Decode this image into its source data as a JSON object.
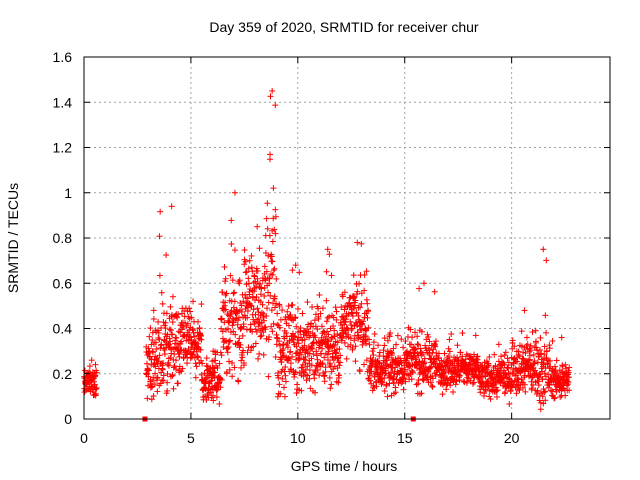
{
  "chart_data": {
    "type": "scatter",
    "title": "Day 359 of 2020, SRMTID for receiver chur",
    "xlabel": "GPS time / hours",
    "ylabel": "SRMTID / TECUs",
    "xlim": [
      0,
      24.6
    ],
    "ylim": [
      0,
      1.6
    ],
    "xticks": [
      0,
      5,
      10,
      15,
      20
    ],
    "yticks": [
      0,
      0.2,
      0.4,
      0.6,
      0.8,
      1,
      1.2,
      1.4,
      1.6
    ],
    "ytick_labels": [
      "0",
      "0.2",
      "0.4",
      "0.6",
      "0.8",
      "1",
      "1.2",
      "1.4",
      "1.6"
    ],
    "grid": true,
    "marker": "+",
    "color": "#ff0000",
    "zero_markers": {
      "x": [
        2.85,
        15.4
      ],
      "y": [
        0,
        0
      ]
    },
    "series": [
      {
        "name": "SRMTID",
        "segments": [
          {
            "start": 0.0,
            "end": 0.6,
            "base": 0.16,
            "spread": 0.06,
            "peak": 0.26
          },
          {
            "start": 2.9,
            "end": 3.5,
            "base": 0.25,
            "spread": 0.14,
            "peak": 0.48
          },
          {
            "start": 3.5,
            "end": 4.5,
            "base": 0.32,
            "spread": 0.15,
            "peak": 0.94
          },
          {
            "start": 4.5,
            "end": 5.5,
            "base": 0.35,
            "spread": 0.1,
            "peak": 0.52
          },
          {
            "start": 5.5,
            "end": 6.4,
            "base": 0.17,
            "spread": 0.07,
            "peak": 0.3
          },
          {
            "start": 6.4,
            "end": 7.5,
            "base": 0.4,
            "spread": 0.18,
            "peak": 1.0
          },
          {
            "start": 7.5,
            "end": 8.5,
            "base": 0.5,
            "spread": 0.2,
            "peak": 0.85
          },
          {
            "start": 8.5,
            "end": 9.0,
            "base": 0.6,
            "spread": 0.3,
            "peak": 1.45
          },
          {
            "start": 9.0,
            "end": 10.5,
            "base": 0.3,
            "spread": 0.15,
            "peak": 0.68
          },
          {
            "start": 10.5,
            "end": 12.0,
            "base": 0.32,
            "spread": 0.14,
            "peak": 0.75
          },
          {
            "start": 12.0,
            "end": 13.3,
            "base": 0.42,
            "spread": 0.15,
            "peak": 0.78
          },
          {
            "start": 13.3,
            "end": 15.0,
            "base": 0.22,
            "spread": 0.08,
            "peak": 0.38
          },
          {
            "start": 15.0,
            "end": 16.5,
            "base": 0.25,
            "spread": 0.1,
            "peak": 0.6
          },
          {
            "start": 16.5,
            "end": 18.5,
            "base": 0.22,
            "spread": 0.07,
            "peak": 0.38
          },
          {
            "start": 18.5,
            "end": 20.0,
            "base": 0.18,
            "spread": 0.07,
            "peak": 0.33
          },
          {
            "start": 20.0,
            "end": 21.0,
            "base": 0.24,
            "spread": 0.1,
            "peak": 0.48
          },
          {
            "start": 21.0,
            "end": 21.8,
            "base": 0.22,
            "spread": 0.12,
            "peak": 0.75
          },
          {
            "start": 21.8,
            "end": 22.7,
            "base": 0.17,
            "spread": 0.06,
            "peak": 0.36
          }
        ]
      }
    ]
  }
}
